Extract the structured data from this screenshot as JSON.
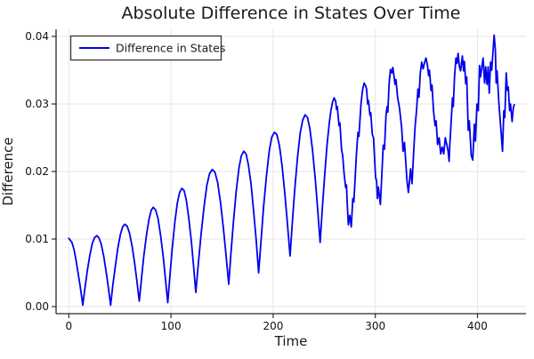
{
  "chart_data": {
    "type": "line",
    "title": "Absolute Difference in States Over Time",
    "xlabel": "Time",
    "ylabel": "Difference",
    "grid": true,
    "legend_position": "top-left",
    "xlim": [
      -12.5,
      447.5
    ],
    "ylim": [
      -0.00105,
      0.04105
    ],
    "xticks": [
      0,
      100,
      200,
      300,
      400
    ],
    "xtick_labels": [
      "0",
      "100",
      "200",
      "300",
      "400"
    ],
    "yticks": [
      0.0,
      0.01,
      0.02,
      0.03,
      0.04
    ],
    "ytick_labels": [
      "0.00",
      "0.01",
      "0.02",
      "0.03",
      "0.04"
    ],
    "series": [
      {
        "name": "Difference in States",
        "color": "#0000ee",
        "x": [
          0,
          3,
          5,
          7,
          9,
          11,
          12.5,
          13.6,
          15.8,
          18,
          20.4,
          22.9,
          25.1,
          27.3,
          29.4,
          31.6,
          34.1,
          36.5,
          38.7,
          40.9,
          43.1,
          45.4,
          47.9,
          50.5,
          52.7,
          54.8,
          57.1,
          59.4,
          62,
          64.5,
          66.7,
          69,
          71.2,
          73.4,
          76,
          78.5,
          80.7,
          82.6,
          85,
          87.3,
          89.9,
          92.4,
          94.6,
          96.8,
          99,
          101.2,
          103.7,
          106.2,
          108.4,
          110.6,
          112.8,
          115,
          117.4,
          119.9,
          122.1,
          124.3,
          126.9,
          129.5,
          132.4,
          135.2,
          137.8,
          140.4,
          143,
          145.6,
          148.5,
          151.3,
          153.9,
          156.5,
          158.8,
          161.2,
          163.8,
          166.5,
          168.8,
          171.2,
          173.5,
          175.8,
          178.5,
          181.1,
          183.5,
          185.8,
          188.3,
          190.7,
          193.5,
          196.2,
          198.7,
          201.2,
          203.6,
          206.1,
          208.8,
          211.6,
          214,
          216.5,
          218.9,
          221.2,
          223.9,
          226.5,
          228.9,
          231.3,
          233.6,
          236,
          238.6,
          241.3,
          243.6,
          246,
          248.2,
          250.5,
          252.8,
          255,
          256.5,
          258,
          259.7,
          261.2,
          262,
          262.8,
          264.5,
          265.3,
          267,
          268,
          269.5,
          271,
          271.8,
          272.5,
          273.6,
          275,
          276.5,
          278,
          279,
          281.5,
          283,
          284,
          286,
          287.5,
          289,
          290.5,
          291.5,
          292.5,
          293.3,
          294.8,
          295.6,
          297,
          298.3,
          300.3,
          301.3,
          302,
          303,
          305,
          306.5,
          307.8,
          309,
          310.5,
          311.5,
          312.3,
          313.5,
          314.8,
          316.2,
          317.2,
          318.4,
          319.3,
          320.2,
          321.8,
          323.7,
          325.8,
          327.2,
          328.6,
          331,
          332.4,
          334.5,
          335.9,
          337.5,
          338.9,
          340.3,
          341.7,
          342.8,
          344,
          345.4,
          346.8,
          348,
          349.6,
          351,
          352.2,
          353,
          354.5,
          355.5,
          357,
          358.5,
          359.5,
          361,
          362.5,
          364,
          365.5,
          367,
          368.5,
          370,
          371.3,
          372.2,
          373,
          374.5,
          375.5,
          376.3,
          377.5,
          378.9,
          380,
          381,
          382.3,
          383.5,
          385.2,
          386.3,
          387.2,
          388.5,
          389.5,
          391,
          392,
          393.9,
          395.4,
          397,
          398,
          399.5,
          400.8,
          402,
          403,
          405.5,
          407,
          408,
          409.3,
          410.5,
          411.5,
          412.8,
          414,
          416.3,
          417.5,
          418.3,
          419.2,
          421,
          423.5,
          424.5,
          425.8,
          426.8,
          428.2,
          429.3,
          430.2,
          431.5,
          432.3,
          433.9,
          435,
          436
        ],
        "y": [
          0.0101,
          0.0095,
          0.0085,
          0.0069,
          0.005,
          0.0031,
          0.0015,
          0.0002,
          0.0028,
          0.0052,
          0.0075,
          0.0093,
          0.0102,
          0.0105,
          0.0102,
          0.0093,
          0.0075,
          0.0052,
          0.0028,
          0.0002,
          0.0032,
          0.0059,
          0.0086,
          0.0107,
          0.0118,
          0.0122,
          0.0119,
          0.0109,
          0.0089,
          0.0063,
          0.0037,
          0.0008,
          0.0043,
          0.0075,
          0.0106,
          0.013,
          0.0143,
          0.0147,
          0.0143,
          0.013,
          0.0105,
          0.0074,
          0.0041,
          0.0006,
          0.0047,
          0.0086,
          0.0124,
          0.0153,
          0.0169,
          0.0175,
          0.0172,
          0.0158,
          0.0131,
          0.0097,
          0.006,
          0.0021,
          0.0066,
          0.0108,
          0.0148,
          0.018,
          0.0197,
          0.0203,
          0.0199,
          0.0184,
          0.0154,
          0.0116,
          0.0076,
          0.0033,
          0.0081,
          0.0127,
          0.0171,
          0.0205,
          0.0223,
          0.023,
          0.0226,
          0.021,
          0.018,
          0.0138,
          0.0096,
          0.005,
          0.0101,
          0.0148,
          0.0195,
          0.0231,
          0.0251,
          0.0258,
          0.0255,
          0.0239,
          0.0208,
          0.0165,
          0.0122,
          0.0075,
          0.0127,
          0.0174,
          0.0221,
          0.0257,
          0.0276,
          0.0284,
          0.028,
          0.0263,
          0.0231,
          0.0188,
          0.0143,
          0.0095,
          0.0146,
          0.0196,
          0.024,
          0.0272,
          0.029,
          0.0302,
          0.0309,
          0.0304,
          0.0292,
          0.0296,
          0.0268,
          0.0272,
          0.0232,
          0.0224,
          0.0196,
          0.0176,
          0.018,
          0.0154,
          0.0121,
          0.0135,
          0.0118,
          0.016,
          0.0155,
          0.0226,
          0.0258,
          0.0252,
          0.03,
          0.032,
          0.0331,
          0.0327,
          0.0322,
          0.03,
          0.0305,
          0.0283,
          0.0287,
          0.0255,
          0.025,
          0.0191,
          0.0186,
          0.016,
          0.0177,
          0.0151,
          0.02,
          0.0239,
          0.0233,
          0.0283,
          0.0296,
          0.0288,
          0.033,
          0.0351,
          0.0346,
          0.0354,
          0.034,
          0.0329,
          0.0336,
          0.031,
          0.0294,
          0.0265,
          0.023,
          0.0243,
          0.0186,
          0.0169,
          0.0204,
          0.0182,
          0.0226,
          0.0265,
          0.029,
          0.0322,
          0.031,
          0.0345,
          0.0362,
          0.0352,
          0.036,
          0.0368,
          0.0358,
          0.0342,
          0.035,
          0.032,
          0.0328,
          0.029,
          0.0268,
          0.0275,
          0.024,
          0.025,
          0.0226,
          0.0236,
          0.0226,
          0.025,
          0.024,
          0.023,
          0.0215,
          0.0242,
          0.028,
          0.0309,
          0.0296,
          0.034,
          0.0368,
          0.036,
          0.0375,
          0.0355,
          0.0349,
          0.0371,
          0.0349,
          0.0363,
          0.033,
          0.034,
          0.0261,
          0.0275,
          0.0224,
          0.0217,
          0.027,
          0.0245,
          0.03,
          0.029,
          0.0357,
          0.034,
          0.0368,
          0.0331,
          0.0355,
          0.0329,
          0.0355,
          0.0316,
          0.0362,
          0.035,
          0.0402,
          0.038,
          0.0331,
          0.0349,
          0.03,
          0.025,
          0.023,
          0.029,
          0.028,
          0.0346,
          0.032,
          0.0325,
          0.029,
          0.03,
          0.0274,
          0.0294,
          0.0299
        ]
      }
    ]
  },
  "legend": {
    "entries": [
      {
        "label": "Difference in States"
      }
    ]
  },
  "colors": {
    "line": "#0000ee",
    "grid": "#e6e6e6",
    "spine": "#2a2a2a",
    "background": "#ffffff",
    "legend_border": "#333333"
  }
}
